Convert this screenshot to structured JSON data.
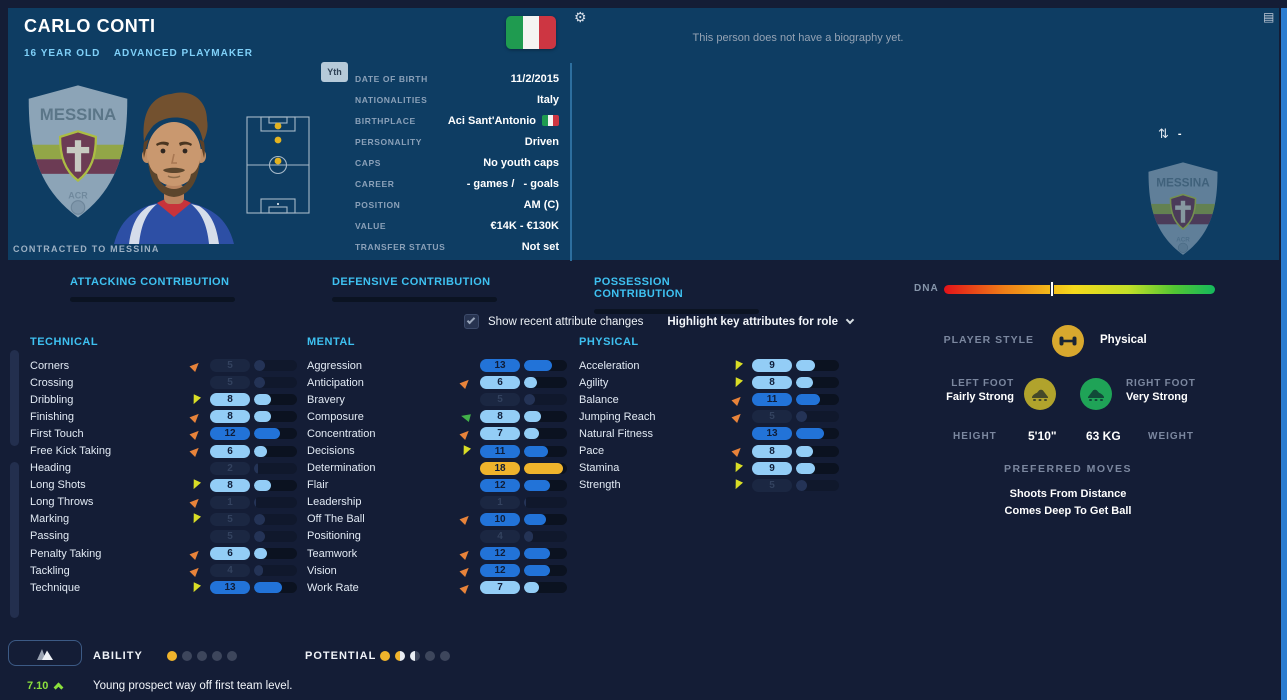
{
  "header": {
    "name": "CARLO CONTI",
    "age_text": "16 YEAR OLD",
    "role_text": "ADVANCED PLAYMAKER",
    "youth_badge": "Yth",
    "contracted": "CONTRACTED TO MESSINA",
    "biography": "This person does not have a biography yet.",
    "transfer_value": "-",
    "club": "MESSINA",
    "info": [
      {
        "label": "DATE OF BIRTH",
        "value": "11/2/2015"
      },
      {
        "label": "NATIONALITIES",
        "value": "Italy"
      },
      {
        "label": "BIRTHPLACE",
        "value": "Aci Sant'Antonio",
        "flag": true
      },
      {
        "label": "PERSONALITY",
        "value": "Driven"
      },
      {
        "label": "CAPS",
        "value": "No youth caps"
      },
      {
        "label": "CAREER",
        "value": "- games /   - goals"
      },
      {
        "label": "POSITION",
        "value": "AM (C)"
      },
      {
        "label": "VALUE",
        "value": "€14K - €130K"
      },
      {
        "label": "TRANSFER STATUS",
        "value": "Not set"
      }
    ]
  },
  "tabs": [
    "ATTACKING CONTRIBUTION",
    "DEFENSIVE CONTRIBUTION",
    "POSSESSION CONTRIBUTION"
  ],
  "controls": {
    "checkbox_label": "Show recent attribute changes",
    "checkbox_checked": true,
    "dropdown_label": "Highlight key attributes for role"
  },
  "attributes": {
    "technical": {
      "title": "TECHNICAL",
      "rows": [
        {
          "name": "Corners",
          "value": 5,
          "arrow": "up",
          "faded": true
        },
        {
          "name": "Crossing",
          "value": 5,
          "arrow": null,
          "faded": true
        },
        {
          "name": "Dribbling",
          "value": 8,
          "arrow": "down",
          "faded": false
        },
        {
          "name": "Finishing",
          "value": 8,
          "arrow": "up",
          "faded": false
        },
        {
          "name": "First Touch",
          "value": 12,
          "arrow": "up",
          "faded": false
        },
        {
          "name": "Free Kick Taking",
          "value": 6,
          "arrow": "up",
          "faded": false
        },
        {
          "name": "Heading",
          "value": 2,
          "arrow": null,
          "faded": true
        },
        {
          "name": "Long Shots",
          "value": 8,
          "arrow": "down",
          "faded": false
        },
        {
          "name": "Long Throws",
          "value": 1,
          "arrow": "up",
          "faded": true
        },
        {
          "name": "Marking",
          "value": 5,
          "arrow": "down",
          "faded": true
        },
        {
          "name": "Passing",
          "value": 5,
          "arrow": null,
          "faded": true
        },
        {
          "name": "Penalty Taking",
          "value": 6,
          "arrow": "up",
          "faded": false
        },
        {
          "name": "Tackling",
          "value": 4,
          "arrow": "up",
          "faded": true
        },
        {
          "name": "Technique",
          "value": 13,
          "arrow": "down",
          "faded": false
        }
      ]
    },
    "mental": {
      "title": "MENTAL",
      "rows": [
        {
          "name": "Aggression",
          "value": 13,
          "arrow": null,
          "faded": false
        },
        {
          "name": "Anticipation",
          "value": 6,
          "arrow": "up",
          "faded": false
        },
        {
          "name": "Bravery",
          "value": 5,
          "arrow": null,
          "faded": true
        },
        {
          "name": "Composure",
          "value": 8,
          "arrow": "left",
          "faded": false
        },
        {
          "name": "Concentration",
          "value": 7,
          "arrow": "up",
          "faded": false
        },
        {
          "name": "Decisions",
          "value": 11,
          "arrow": "down",
          "faded": false
        },
        {
          "name": "Determination",
          "value": 18,
          "arrow": null,
          "faded": false
        },
        {
          "name": "Flair",
          "value": 12,
          "arrow": null,
          "faded": false
        },
        {
          "name": "Leadership",
          "value": 1,
          "arrow": null,
          "faded": true
        },
        {
          "name": "Off The Ball",
          "value": 10,
          "arrow": "up",
          "faded": false
        },
        {
          "name": "Positioning",
          "value": 4,
          "arrow": null,
          "faded": true
        },
        {
          "name": "Teamwork",
          "value": 12,
          "arrow": "up",
          "faded": false
        },
        {
          "name": "Vision",
          "value": 12,
          "arrow": "up",
          "faded": false
        },
        {
          "name": "Work Rate",
          "value": 7,
          "arrow": "up",
          "faded": false
        }
      ]
    },
    "physical": {
      "title": "PHYSICAL",
      "rows": [
        {
          "name": "Acceleration",
          "value": 9,
          "arrow": "down",
          "faded": false
        },
        {
          "name": "Agility",
          "value": 8,
          "arrow": "down",
          "faded": false
        },
        {
          "name": "Balance",
          "value": 11,
          "arrow": "up",
          "faded": false
        },
        {
          "name": "Jumping Reach",
          "value": 5,
          "arrow": "up",
          "faded": true
        },
        {
          "name": "Natural Fitness",
          "value": 13,
          "arrow": null,
          "faded": false
        },
        {
          "name": "Pace",
          "value": 8,
          "arrow": "up",
          "faded": false
        },
        {
          "name": "Stamina",
          "value": 9,
          "arrow": "down",
          "faded": false
        },
        {
          "name": "Strength",
          "value": 5,
          "arrow": "down",
          "faded": true
        }
      ]
    }
  },
  "side": {
    "dna_label": "DNA",
    "dna_marker_pct": 39,
    "player_style_label": "PLAYER STYLE",
    "player_style_value": "Physical",
    "left_foot_label": "LEFT FOOT",
    "left_foot_value": "Fairly Strong",
    "right_foot_label": "RIGHT FOOT",
    "right_foot_value": "Very Strong",
    "height_label": "HEIGHT",
    "height_value": "5'10\"",
    "weight_value": "63 KG",
    "weight_label": "WEIGHT",
    "preferred_moves_title": "PREFERRED MOVES",
    "preferred_moves": [
      "Shoots From Distance",
      "Comes Deep To Get Ball"
    ]
  },
  "footer": {
    "ability_label": "ABILITY",
    "ability_dots": [
      "gold",
      "gray",
      "gray",
      "gray",
      "gray"
    ],
    "potential_label": "POTENTIAL",
    "potential_dots": [
      "gold",
      "gold-white",
      "white-gray",
      "gray",
      "gray"
    ],
    "rating": "7.10",
    "note": "Young prospect way off first team level."
  },
  "colors": {
    "panel_blue": "#0e3d63",
    "page_bg": "#141d36",
    "accent_cyan": "#3ec1f1",
    "pill_light": "#93cdf6",
    "pill_dark": "#2273d8",
    "pill_gold": "#f0b42c",
    "arrow_up": "#e8833a",
    "arrow_down": "#d9dd26",
    "arrow_left": "#42b24a",
    "left_foot_circle": "#b1a32c",
    "right_foot_circle": "#1fa357",
    "rating_green": "#8be03c"
  }
}
